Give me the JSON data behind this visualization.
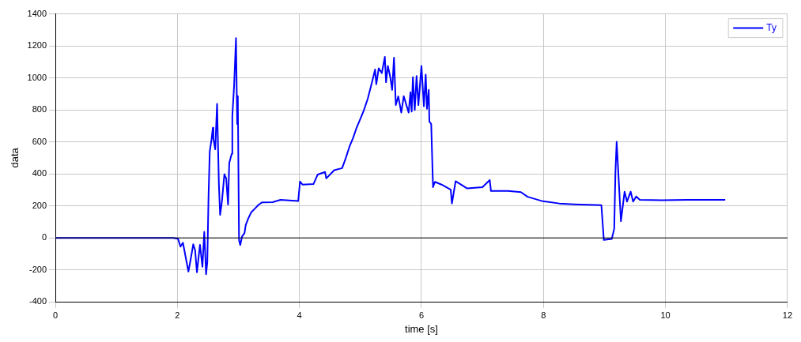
{
  "chart_data": {
    "type": "line",
    "xlabel": "time [s]",
    "ylabel": "data",
    "xlim": [
      0,
      12
    ],
    "xticks": [
      0,
      2,
      4,
      6,
      8,
      10,
      12
    ],
    "ylim": [
      -400,
      1400
    ],
    "yticks": [
      -400,
      -200,
      0,
      200,
      400,
      600,
      800,
      1000,
      1200,
      1400
    ],
    "grid": true,
    "legend": "top right",
    "marker": "none",
    "line_style": "solid",
    "ref_lines": [
      {
        "axis": "y",
        "value": 0,
        "color": "#000000"
      }
    ],
    "series": [
      {
        "name": "Ty",
        "color": "#0000ff",
        "x": [
          0,
          1.93,
          2.01,
          2.05,
          2.09,
          2.14,
          2.18,
          2.21,
          2.26,
          2.29,
          2.32,
          2.37,
          2.41,
          2.44,
          2.47,
          2.49,
          2.51,
          2.53,
          2.56,
          2.58,
          2.59,
          2.62,
          2.65,
          2.68,
          2.7,
          2.73,
          2.77,
          2.8,
          2.83,
          2.85,
          2.89,
          2.9,
          2.93,
          2.96,
          2.98,
          2.99,
          3.01,
          3.03,
          3.06,
          3.1,
          3.12,
          3.16,
          3.21,
          3.27,
          3.33,
          3.39,
          3.56,
          3.69,
          3.98,
          4.01,
          4.05,
          4.23,
          4.3,
          4.42,
          4.44,
          4.57,
          4.7,
          4.76,
          4.82,
          4.88,
          4.93,
          4.99,
          5.05,
          5.12,
          5.19,
          5.24,
          5.26,
          5.3,
          5.35,
          5.4,
          5.42,
          5.45,
          5.49,
          5.52,
          5.55,
          5.58,
          5.62,
          5.67,
          5.71,
          5.79,
          5.82,
          5.84,
          5.86,
          5.89,
          5.92,
          5.95,
          6,
          6.04,
          6.07,
          6.09,
          6.12,
          6.13,
          6.16,
          6.19,
          6.22,
          6.33,
          6.48,
          6.5,
          6.56,
          6.75,
          7,
          7.12,
          7.14,
          7.42,
          7.63,
          7.74,
          7.97,
          8.26,
          8.51,
          8.95,
          8.99,
          9.12,
          9.16,
          9.18,
          9.2,
          9.27,
          9.33,
          9.37,
          9.43,
          9.47,
          9.52,
          9.58,
          9.94,
          10.36,
          10.98
        ],
        "values": [
          0,
          0,
          -5,
          -55,
          -30,
          -130,
          -210,
          -150,
          -40,
          -77,
          -215,
          -43,
          -180,
          38,
          -227,
          -150,
          255,
          540,
          617,
          688,
          620,
          554,
          838,
          333,
          144,
          230,
          398,
          370,
          208,
          469,
          525,
          760,
          957,
          1249,
          712,
          886,
          -14,
          -45,
          9,
          30,
          80,
          120,
          160,
          183,
          207,
          222,
          223,
          238,
          231,
          352,
          333,
          336,
          396,
          412,
          372,
          423,
          436,
          499,
          570,
          625,
          681,
          736,
          791,
          870,
          973,
          1052,
          960,
          1060,
          1030,
          1131,
          973,
          1075,
          1003,
          925,
          1126,
          830,
          885,
          783,
          886,
          783,
          910,
          790,
          1004,
          799,
          1012,
          830,
          1075,
          823,
          1020,
          807,
          925,
          728,
          712,
          317,
          350,
          333,
          302,
          215,
          354,
          309,
          317,
          361,
          293,
          293,
          286,
          257,
          231,
          215,
          210,
          204,
          -13,
          -6,
          57,
          412,
          601,
          104,
          289,
          227,
          289,
          227,
          259,
          238,
          235,
          238,
          238
        ]
      }
    ]
  }
}
